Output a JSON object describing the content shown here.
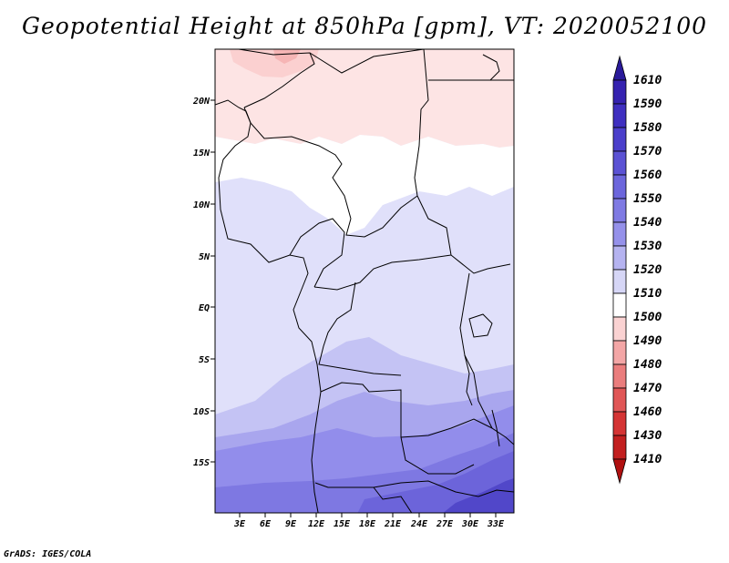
{
  "title": "Geopotential Height at 850hPa [gpm], VT: 2020052100",
  "footer": "GrADS: IGES/COLA",
  "map": {
    "lat_labels": [
      "20N",
      "15N",
      "10N",
      "5N",
      "EQ",
      "5S",
      "10S",
      "15S"
    ],
    "lon_labels": [
      "3E",
      "6E",
      "9E",
      "12E",
      "15E",
      "18E",
      "21E",
      "24E",
      "27E",
      "30E",
      "33E"
    ]
  },
  "colorbar": {
    "levels": [
      "1610",
      "1590",
      "1580",
      "1570",
      "1560",
      "1550",
      "1540",
      "1530",
      "1520",
      "1510",
      "1500",
      "1490",
      "1480",
      "1470",
      "1460",
      "1430",
      "1410"
    ],
    "colors": [
      "#2a1a9a",
      "#3522b0",
      "#3f2fc0",
      "#4b3fcb",
      "#5b52d4",
      "#6c66dc",
      "#7f7ae3",
      "#9591ea",
      "#b5b3f0",
      "#d6d6f6",
      "#ffffff",
      "#fad2d2",
      "#f3a6a6",
      "#ea7d7d",
      "#e05656",
      "#d43434",
      "#c21f1f",
      "#b01010"
    ]
  }
}
